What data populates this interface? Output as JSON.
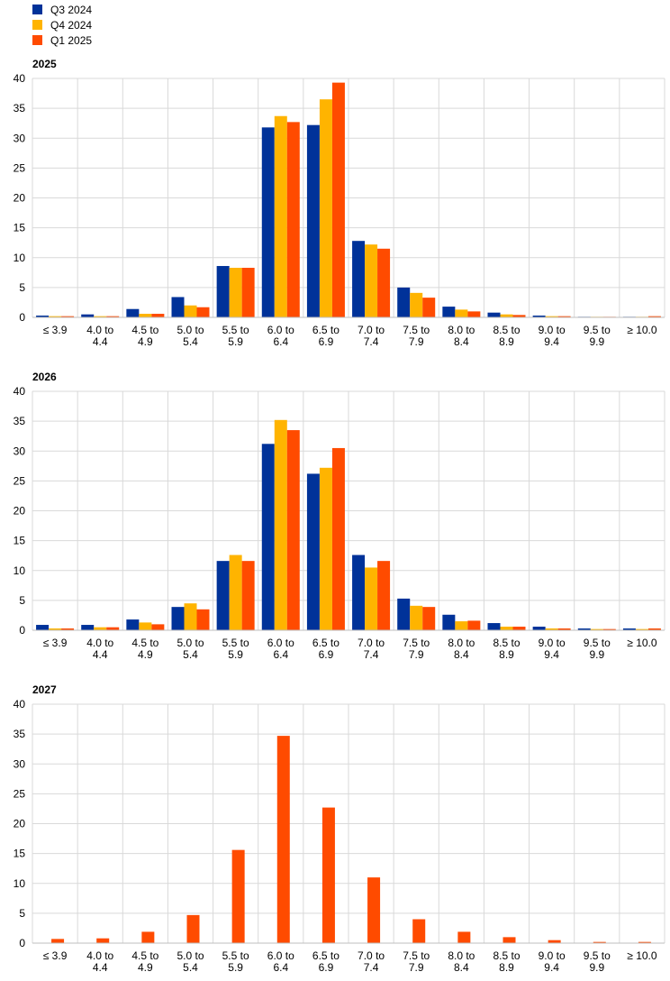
{
  "legend": [
    {
      "name": "Q3 2024",
      "color": "#003299"
    },
    {
      "name": "Q4 2024",
      "color": "#FFB400"
    },
    {
      "name": "Q1 2025",
      "color": "#FF4B00"
    }
  ],
  "chart_data": [
    {
      "type": "bar",
      "title": "2025",
      "categories": [
        [
          "≤ 3.9"
        ],
        [
          "4.0  to",
          "4.4"
        ],
        [
          "4.5  to",
          "4.9"
        ],
        [
          "5.0  to",
          "5.4"
        ],
        [
          "5.5  to",
          "5.9"
        ],
        [
          "6.0  to",
          "6.4"
        ],
        [
          "6.5  to",
          "6.9"
        ],
        [
          "7.0  to",
          "7.4"
        ],
        [
          "7.5  to",
          "7.9"
        ],
        [
          "8.0  to",
          "8.4"
        ],
        [
          "8.5  to",
          "8.9"
        ],
        [
          "9.0  to",
          "9.4"
        ],
        [
          "9.5  to",
          "9.9"
        ],
        [
          "≥ 10.0"
        ]
      ],
      "ylim": [
        0,
        40
      ],
      "yticks": [
        0,
        5,
        10,
        15,
        20,
        25,
        30,
        35,
        40
      ],
      "grid": true,
      "series": [
        {
          "name": "Q3 2024",
          "color": "#003299",
          "values": [
            0.3,
            0.5,
            1.4,
            3.4,
            8.6,
            31.8,
            32.2,
            12.8,
            5.0,
            1.8,
            0.8,
            0.3,
            0.1,
            0.1
          ]
        },
        {
          "name": "Q4 2024",
          "color": "#FFB400",
          "values": [
            0.2,
            0.2,
            0.6,
            2.0,
            8.3,
            33.7,
            36.5,
            12.2,
            4.1,
            1.3,
            0.5,
            0.2,
            0.1,
            0.1
          ]
        },
        {
          "name": "Q1 2025",
          "color": "#FF4B00",
          "values": [
            0.2,
            0.2,
            0.6,
            1.7,
            8.3,
            32.7,
            39.3,
            11.5,
            3.3,
            1.0,
            0.4,
            0.2,
            0.1,
            0.2
          ]
        }
      ]
    },
    {
      "type": "bar",
      "title": "2026",
      "categories": [
        [
          "≤ 3.9"
        ],
        [
          "4.0  to",
          "4.4"
        ],
        [
          "4.5  to",
          "4.9"
        ],
        [
          "5.0  to",
          "5.4"
        ],
        [
          "5.5  to",
          "5.9"
        ],
        [
          "6.0  to",
          "6.4"
        ],
        [
          "6.5  to",
          "6.9"
        ],
        [
          "7.0  to",
          "7.4"
        ],
        [
          "7.5  to",
          "7.9"
        ],
        [
          "8.0  to",
          "8.4"
        ],
        [
          "8.5  to",
          "8.9"
        ],
        [
          "9.0  to",
          "9.4"
        ],
        [
          "9.5  to",
          "9.9"
        ],
        [
          "≥ 10.0"
        ]
      ],
      "ylim": [
        0,
        40
      ],
      "yticks": [
        0,
        5,
        10,
        15,
        20,
        25,
        30,
        35,
        40
      ],
      "grid": true,
      "series": [
        {
          "name": "Q3 2024",
          "color": "#003299",
          "values": [
            0.9,
            0.9,
            1.8,
            3.9,
            11.6,
            31.2,
            26.2,
            12.6,
            5.3,
            2.6,
            1.2,
            0.6,
            0.3,
            0.3
          ]
        },
        {
          "name": "Q4 2024",
          "color": "#FFB400",
          "values": [
            0.3,
            0.5,
            1.3,
            4.5,
            12.6,
            35.2,
            27.2,
            10.5,
            4.1,
            1.5,
            0.6,
            0.3,
            0.2,
            0.2
          ]
        },
        {
          "name": "Q1 2025",
          "color": "#FF4B00",
          "values": [
            0.3,
            0.5,
            1.0,
            3.5,
            11.6,
            33.5,
            30.5,
            11.6,
            3.9,
            1.6,
            0.6,
            0.3,
            0.2,
            0.3
          ]
        }
      ]
    },
    {
      "type": "bar",
      "title": "2027",
      "categories": [
        [
          "≤ 3.9"
        ],
        [
          "4.0  to",
          "4.4"
        ],
        [
          "4.5  to",
          "4.9"
        ],
        [
          "5.0  to",
          "5.4"
        ],
        [
          "5.5  to",
          "5.9"
        ],
        [
          "6.0  to",
          "6.4"
        ],
        [
          "6.5  to",
          "6.9"
        ],
        [
          "7.0  to",
          "7.4"
        ],
        [
          "7.5  to",
          "7.9"
        ],
        [
          "8.0  to",
          "8.4"
        ],
        [
          "8.5  to",
          "8.9"
        ],
        [
          "9.0  to",
          "9.4"
        ],
        [
          "9.5  to",
          "9.9"
        ],
        [
          "≥ 10.0"
        ]
      ],
      "ylim": [
        0,
        40
      ],
      "yticks": [
        0,
        5,
        10,
        15,
        20,
        25,
        30,
        35,
        40
      ],
      "grid": true,
      "series": [
        {
          "name": "Q1 2025",
          "color": "#FF4B00",
          "values": [
            0.7,
            0.8,
            1.9,
            4.7,
            15.6,
            34.7,
            22.7,
            11.0,
            4.0,
            1.9,
            1.0,
            0.5,
            0.2,
            0.2
          ]
        }
      ]
    }
  ]
}
